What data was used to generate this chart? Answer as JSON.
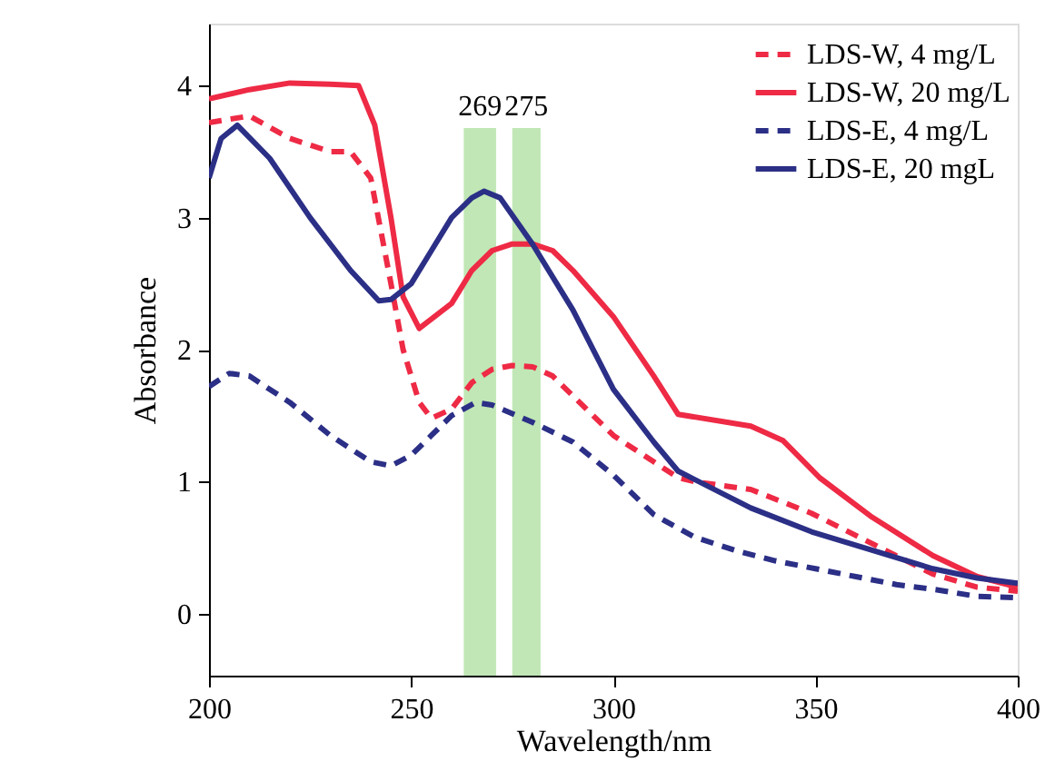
{
  "chart_data": {
    "type": "line",
    "xlabel": "Wavelength/nm",
    "ylabel": "Absorbance",
    "xlim": [
      200,
      400
    ],
    "xticks": [
      200,
      250,
      300,
      350,
      400
    ],
    "ylim": [
      -0.47,
      4.47
    ],
    "yticks": [
      0,
      1,
      2,
      3,
      4
    ],
    "grid": false,
    "legend": "top right",
    "marker": "none",
    "bands": [
      {
        "axis": "x",
        "from": 263,
        "to": 271,
        "label": "269",
        "color": "#b5e3a8"
      },
      {
        "axis": "x",
        "from": 275,
        "to": 282,
        "label": "275",
        "color": "#b5e3a8"
      }
    ],
    "series": [
      {
        "name": "LDS-W, 4 mg/L",
        "color": "#ee2a45",
        "line_style": "dashed",
        "x": [
          200,
          210,
          220,
          230,
          235,
          240,
          245,
          248,
          252,
          255,
          260,
          265,
          270,
          275,
          280,
          285,
          290,
          300,
          310,
          316,
          320,
          334,
          349,
          364,
          379,
          390,
          400
        ],
        "values": [
          3.72,
          3.77,
          3.6,
          3.5,
          3.5,
          3.3,
          2.5,
          2.0,
          1.6,
          1.48,
          1.55,
          1.75,
          1.85,
          1.88,
          1.87,
          1.8,
          1.65,
          1.35,
          1.15,
          1.03,
          1.0,
          0.94,
          0.76,
          0.53,
          0.3,
          0.2,
          0.17
        ]
      },
      {
        "name": "LDS-W, 20 mg/L",
        "color": "#ee2a45",
        "line_style": "solid",
        "x": [
          200,
          210,
          220,
          230,
          237,
          241,
          245,
          248,
          252,
          260,
          265,
          270,
          275,
          280,
          285,
          290,
          300,
          310,
          316,
          334,
          342,
          351,
          364,
          379,
          390,
          400
        ],
        "values": [
          3.9,
          3.97,
          4.02,
          4.01,
          4.0,
          3.7,
          3.0,
          2.4,
          2.16,
          2.35,
          2.6,
          2.75,
          2.8,
          2.8,
          2.75,
          2.6,
          2.25,
          1.8,
          1.51,
          1.42,
          1.31,
          1.03,
          0.73,
          0.44,
          0.28,
          0.2
        ]
      },
      {
        "name": "LDS-E, 4 mg/L",
        "color": "#2b2f86",
        "line_style": "dashed",
        "x": [
          200,
          205,
          210,
          220,
          230,
          240,
          245,
          250,
          255,
          260,
          266,
          270,
          280,
          290,
          300,
          310,
          320,
          330,
          340,
          350,
          360,
          370,
          380,
          390,
          400
        ],
        "values": [
          1.72,
          1.82,
          1.8,
          1.6,
          1.35,
          1.15,
          1.12,
          1.2,
          1.35,
          1.5,
          1.6,
          1.58,
          1.45,
          1.3,
          1.05,
          0.75,
          0.58,
          0.48,
          0.4,
          0.34,
          0.28,
          0.22,
          0.18,
          0.13,
          0.12
        ]
      },
      {
        "name": "LDS-E, 20 mgL",
        "color": "#2b2f86",
        "line_style": "solid",
        "x": [
          200,
          203,
          207,
          215,
          225,
          235,
          242,
          245,
          250,
          255,
          260,
          265,
          268,
          272,
          280,
          290,
          300,
          310,
          316,
          334,
          349,
          364,
          379,
          390,
          400
        ],
        "values": [
          3.3,
          3.6,
          3.7,
          3.45,
          3.0,
          2.6,
          2.37,
          2.38,
          2.5,
          2.75,
          3.0,
          3.15,
          3.2,
          3.15,
          2.8,
          2.3,
          1.7,
          1.3,
          1.08,
          0.8,
          0.62,
          0.48,
          0.34,
          0.27,
          0.23
        ]
      }
    ]
  }
}
